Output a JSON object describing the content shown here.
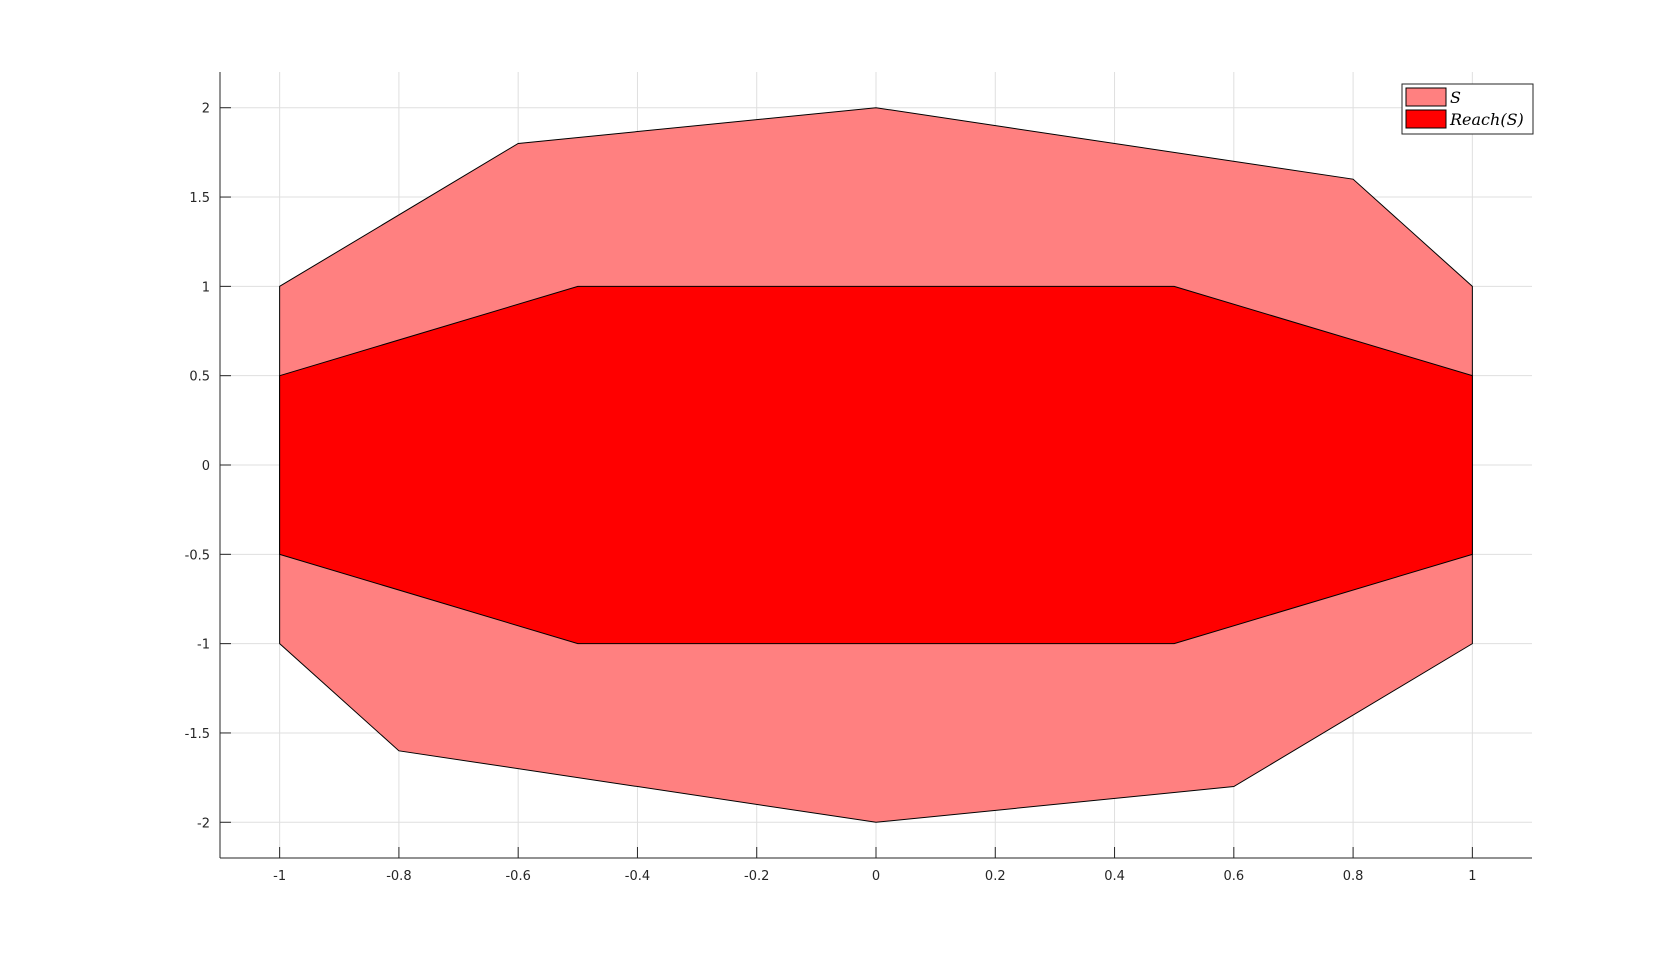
{
  "chart_data": {
    "type": "area",
    "title": "",
    "xlabel": "",
    "ylabel": "",
    "xlim": [
      -1.1,
      1.1
    ],
    "ylim": [
      -2.2,
      2.2
    ],
    "xticks": [
      -1,
      -0.8,
      -0.6,
      -0.4,
      -0.2,
      0,
      0.2,
      0.4,
      0.6,
      0.8,
      1
    ],
    "yticks": [
      -2,
      -1.5,
      -1,
      -0.5,
      0,
      0.5,
      1,
      1.5,
      2
    ],
    "grid": true,
    "legend_position": "top-right",
    "series": [
      {
        "name": "S",
        "color": "#ff8080",
        "vertices": [
          [
            -1,
            1
          ],
          [
            -0.6,
            1.8
          ],
          [
            0,
            2
          ],
          [
            0.8,
            1.6
          ],
          [
            1,
            1
          ],
          [
            1,
            -1
          ],
          [
            0.6,
            -1.8
          ],
          [
            0,
            -2
          ],
          [
            -0.8,
            -1.6
          ],
          [
            -1,
            -1
          ]
        ]
      },
      {
        "name": "Reach(S)",
        "color": "#ff0000",
        "vertices": [
          [
            -1,
            0.5
          ],
          [
            -0.5,
            1
          ],
          [
            0.5,
            1
          ],
          [
            1,
            0.5
          ],
          [
            1,
            -0.5
          ],
          [
            0.5,
            -1
          ],
          [
            -0.5,
            -1
          ],
          [
            -1,
            -0.5
          ]
        ]
      }
    ]
  }
}
